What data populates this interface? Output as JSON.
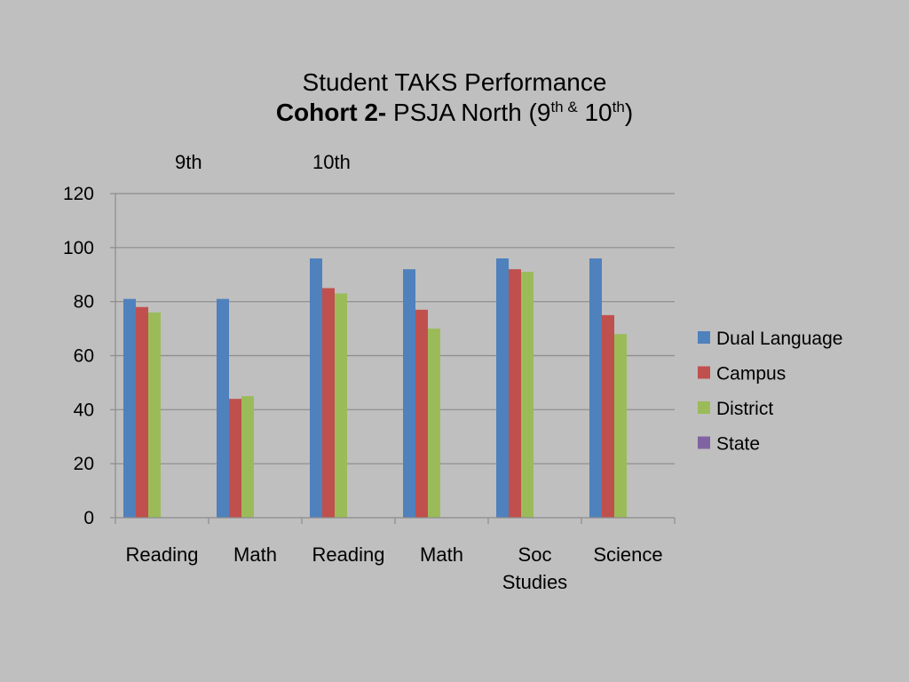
{
  "title": {
    "line1": "Student TAKS Performance",
    "line2_bold": "Cohort 2-",
    "line2_text": " PSJA North (9",
    "line2_sup1": "th &",
    "line2_mid": " 10",
    "line2_sup2": "th",
    "line2_end": ")"
  },
  "grade_labels": [
    "9th",
    "10th"
  ],
  "chart_data": {
    "type": "bar",
    "categories": [
      [
        "Reading"
      ],
      [
        "Math"
      ],
      [
        "Reading"
      ],
      [
        "Math"
      ],
      [
        "Soc",
        "Studies"
      ],
      [
        "Science"
      ]
    ],
    "series": [
      {
        "name": "Dual Language",
        "color": "#4f81bd",
        "values": [
          81,
          81,
          96,
          92,
          96,
          96
        ]
      },
      {
        "name": "Campus",
        "color": "#c0504d",
        "values": [
          78,
          44,
          85,
          77,
          92,
          75
        ]
      },
      {
        "name": "District",
        "color": "#9bbb59",
        "values": [
          76,
          45,
          83,
          70,
          91,
          68
        ]
      },
      {
        "name": "State",
        "color": "#8064a2",
        "values": [
          null,
          null,
          null,
          null,
          null,
          null
        ]
      }
    ],
    "yticks": [
      0,
      20,
      40,
      60,
      80,
      100,
      120
    ],
    "ylim": [
      0,
      120
    ],
    "grid": true,
    "legend": "right"
  }
}
